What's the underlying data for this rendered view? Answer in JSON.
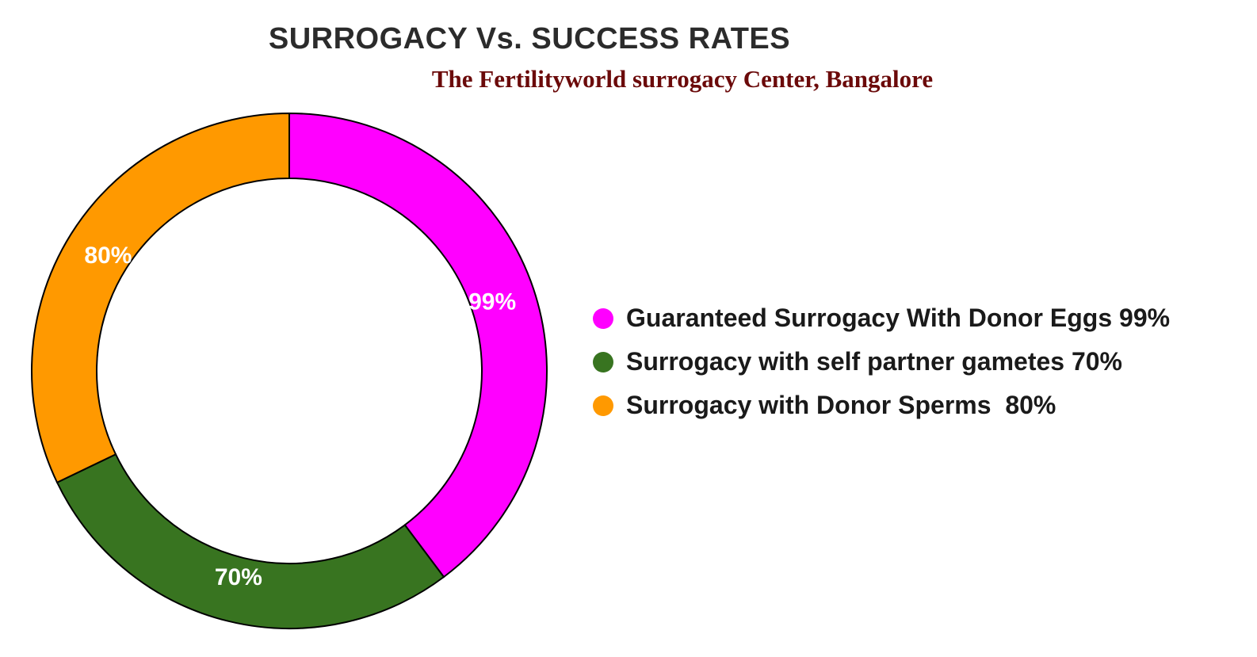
{
  "chart_data": {
    "type": "pie",
    "title": "SURROGACY Vs. SUCCESS RATES",
    "subtitle": "The Fertilityworld surrogacy Center, Bangalore",
    "donut": true,
    "legend_position": "right",
    "series": [
      {
        "name": "Guaranteed Surrogacy With Donor Eggs 99%",
        "value": 99,
        "label": "99%",
        "color": "#ff00ff"
      },
      {
        "name": "Surrogacy with self partner gametes 70%",
        "value": 70,
        "label": "70%",
        "color": "#387420"
      },
      {
        "name": "Surrogacy with Donor Sperms  80%",
        "value": 80,
        "label": "80%",
        "color": "#ff9900"
      }
    ]
  }
}
